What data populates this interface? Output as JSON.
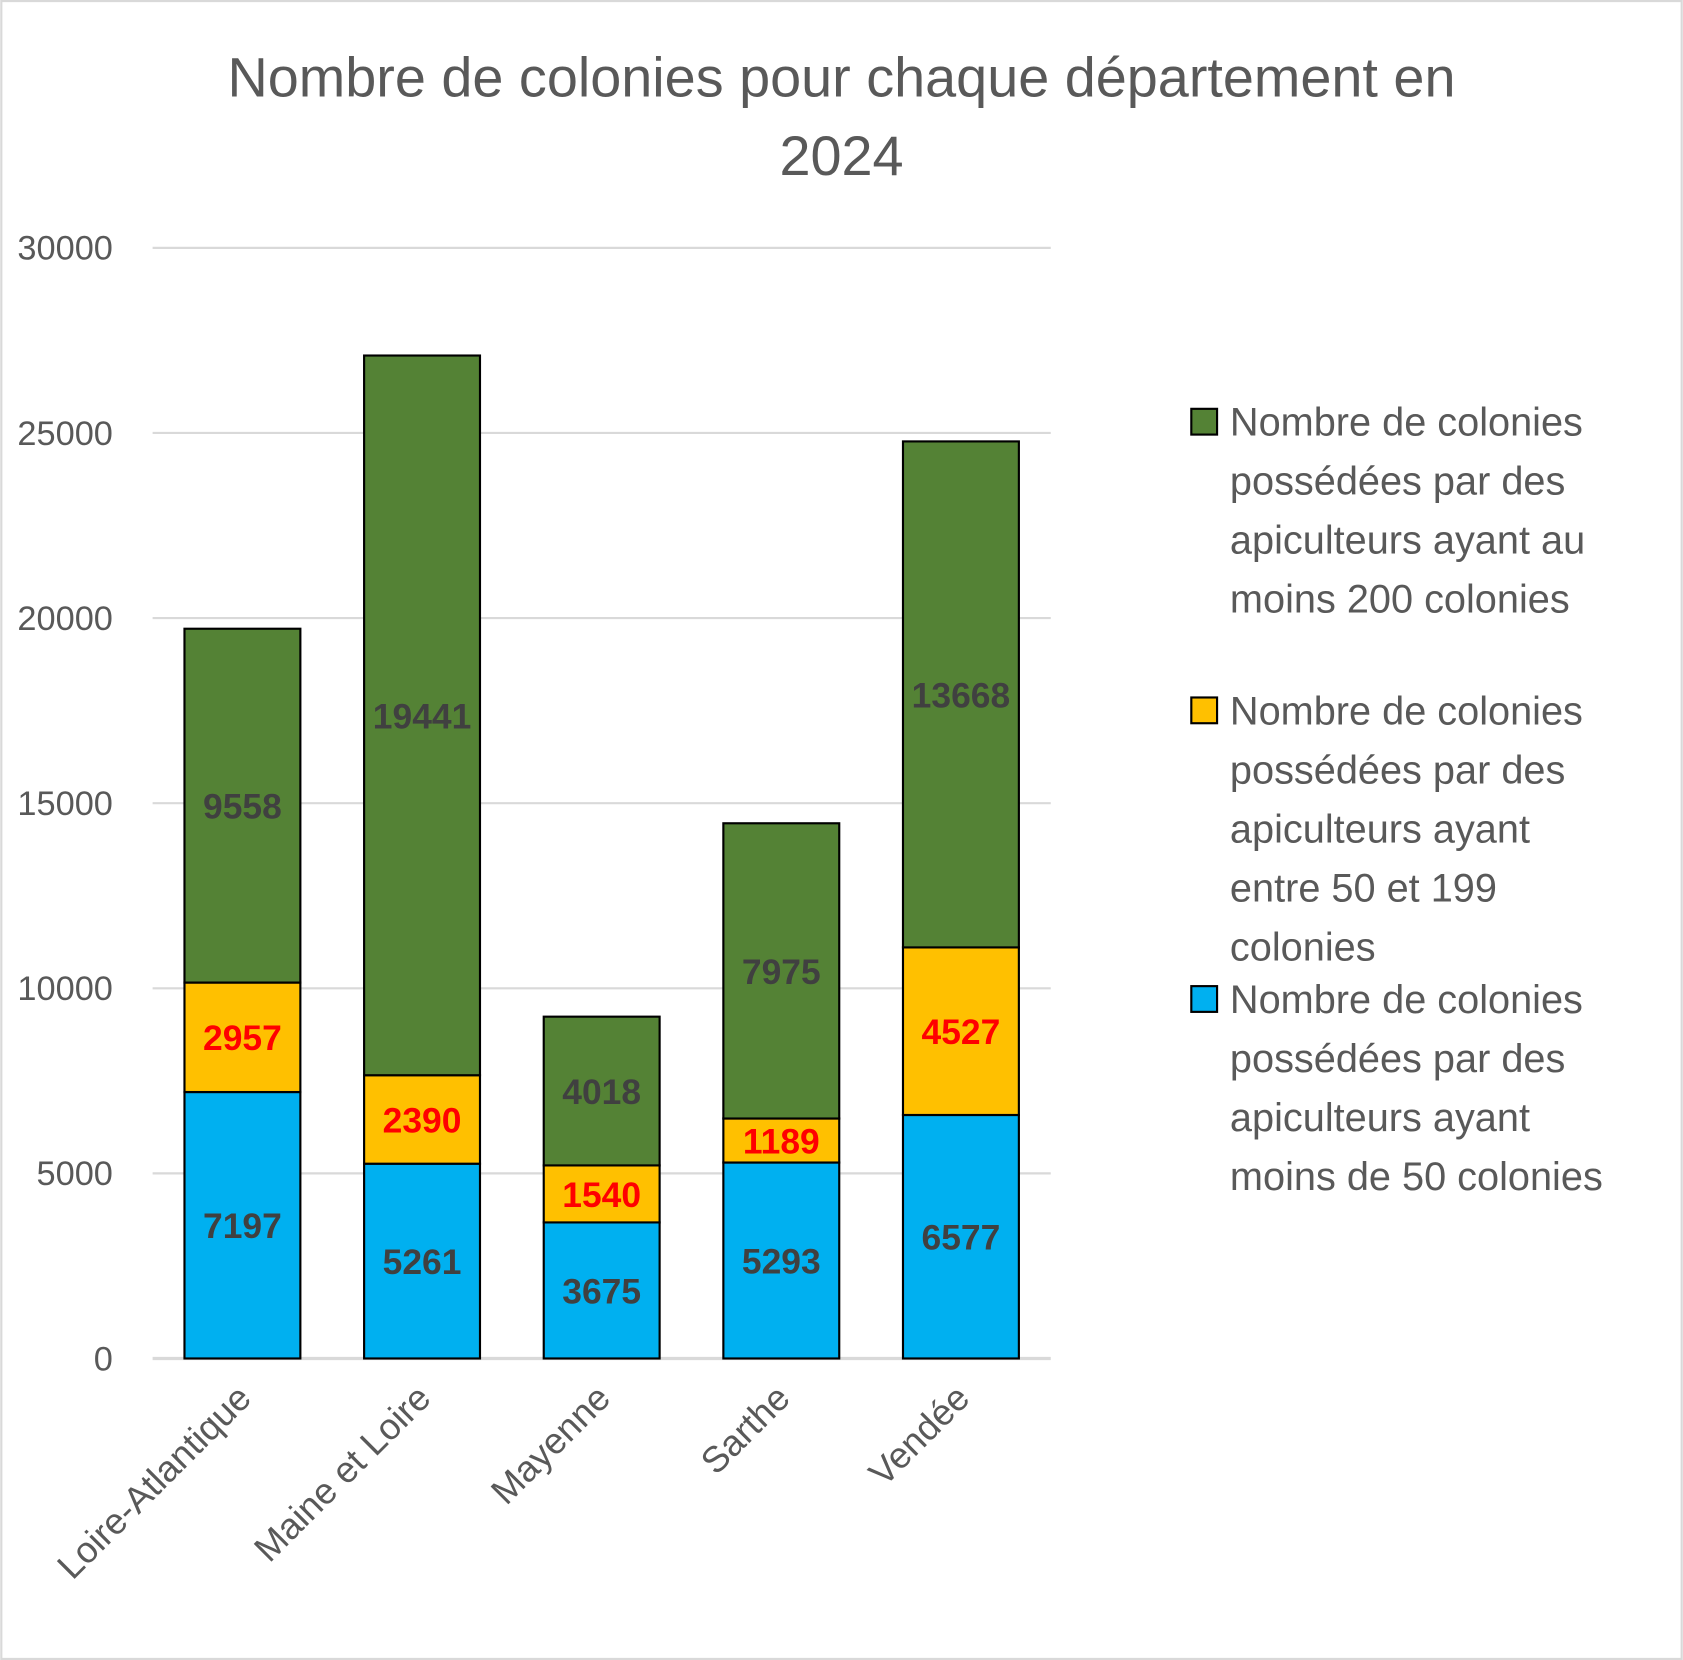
{
  "chart_data": {
    "type": "bar",
    "stacked": true,
    "title_lines": [
      "Nombre de colonies pour chaque département en",
      "2024"
    ],
    "title": "Nombre de colonies pour chaque département en 2024",
    "xlabel": "",
    "ylabel": "",
    "ylim": [
      0,
      30000
    ],
    "yticks": [
      0,
      5000,
      10000,
      15000,
      20000,
      25000,
      30000
    ],
    "grid": true,
    "legend_position": "right",
    "categories": [
      "Loire-Atlantique",
      "Maine et Loire",
      "Mayenne",
      "Sarthe",
      "Vendée"
    ],
    "series": [
      {
        "name": "Nombre de colonies possédées par des apiculteurs ayant moins de 50 colonies",
        "legend_lines": [
          "Nombre de colonies",
          "possédées par des",
          "apiculteurs ayant",
          "moins de 50 colonies"
        ],
        "color": "#00B0F0",
        "label_color": "#404040",
        "values": [
          7197,
          5261,
          3675,
          5293,
          6577
        ]
      },
      {
        "name": "Nombre de colonies possédées par des apiculteurs ayant entre 50 et 199 colonies",
        "legend_lines": [
          "Nombre de colonies",
          "possédées par des",
          "apiculteurs ayant",
          "entre 50 et 199",
          "colonies"
        ],
        "color": "#FFC000",
        "label_color": "#FF0000",
        "values": [
          2957,
          2390,
          1540,
          1189,
          4527
        ]
      },
      {
        "name": "Nombre de colonies possédées par des apiculteurs ayant au moins 200 colonies",
        "legend_lines": [
          "Nombre de colonies",
          "possédées par des",
          "apiculteurs ayant au",
          "moins 200 colonies"
        ],
        "color": "#548235",
        "label_color": "#404040",
        "values": [
          9558,
          19441,
          4018,
          7975,
          13668
        ]
      }
    ]
  }
}
